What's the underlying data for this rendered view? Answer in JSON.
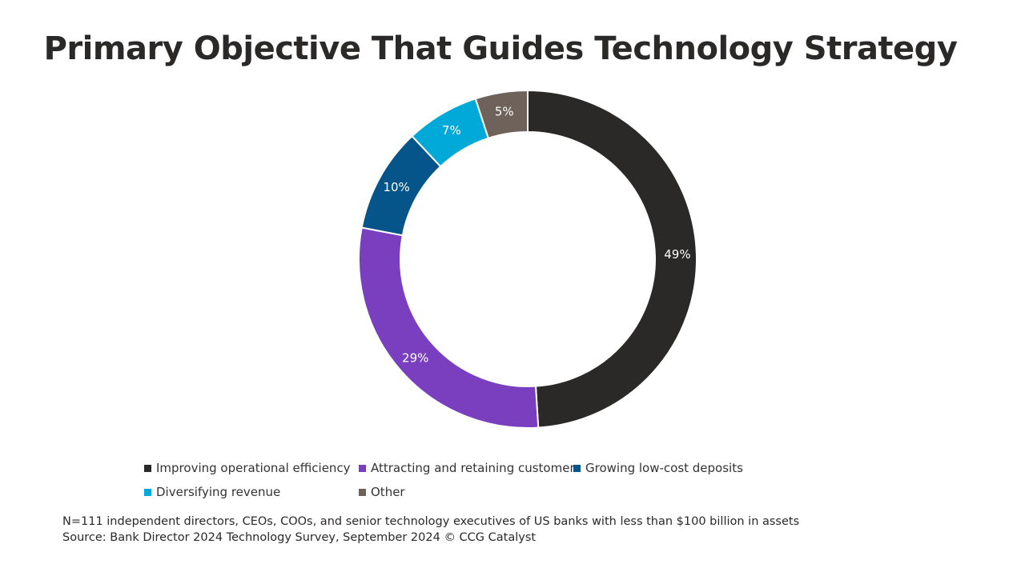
{
  "chart_data": {
    "type": "pie",
    "variant": "donut",
    "title": "Primary Objective That Guides Technology Strategy",
    "categories": [
      "Improving operational efficiency",
      "Attracting and retaining customers",
      "Growing low-cost deposits",
      "Diversifying revenue",
      "Other"
    ],
    "values": [
      49,
      29,
      10,
      7,
      5
    ],
    "data_labels": [
      "49%",
      "29%",
      "10%",
      "7%",
      "5%"
    ],
    "colors": [
      "#2b2828",
      "#7a3fbf",
      "#05548a",
      "#00a9d8",
      "#6e625a"
    ],
    "legend_position": "bottom"
  },
  "footnotes": {
    "sample": "N=111 independent directors, CEOs, COOs, and senior technology executives of US banks with less than $100 billion in assets",
    "source": "Source: Bank Director 2024 Technology Survey, September 2024 © CCG Catalyst"
  }
}
